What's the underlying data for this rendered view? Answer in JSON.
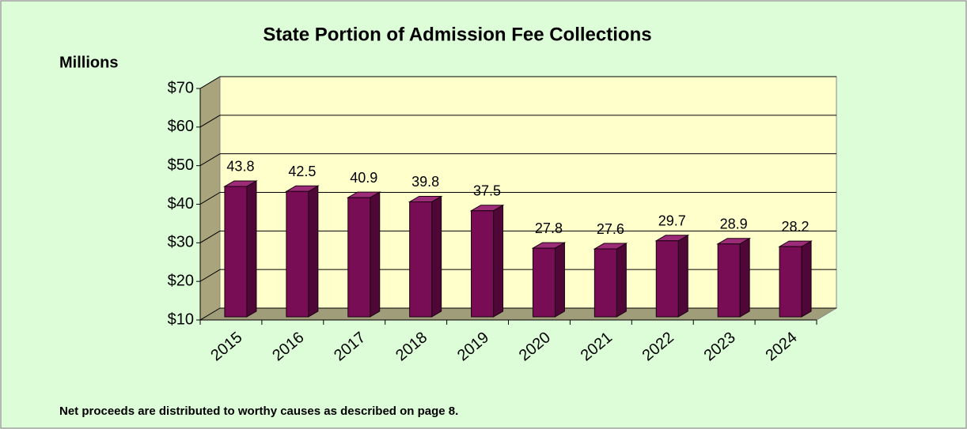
{
  "chart_data": {
    "type": "bar3d",
    "title": "State Portion of Admission Fee Collections",
    "y_axis_label": "Millions",
    "categories": [
      "2015",
      "2016",
      "2017",
      "2018",
      "2019",
      "2020",
      "2021",
      "2022",
      "2023",
      "2024"
    ],
    "values": [
      43.8,
      42.5,
      40.9,
      39.8,
      37.5,
      27.8,
      27.6,
      29.7,
      28.9,
      28.2
    ],
    "color": "#780c55",
    "ylim": [
      10,
      70
    ],
    "yticks": [
      {
        "value": 10,
        "label": "$10"
      },
      {
        "value": 20,
        "label": "$20"
      },
      {
        "value": 30,
        "label": "$30"
      },
      {
        "value": 40,
        "label": "$40"
      },
      {
        "value": 50,
        "label": "$50"
      },
      {
        "value": 60,
        "label": "$60"
      },
      {
        "value": 70,
        "label": "$70"
      }
    ],
    "grid": true,
    "footnote": "Net proceeds are distributed to worthy causes as described on page 8."
  }
}
